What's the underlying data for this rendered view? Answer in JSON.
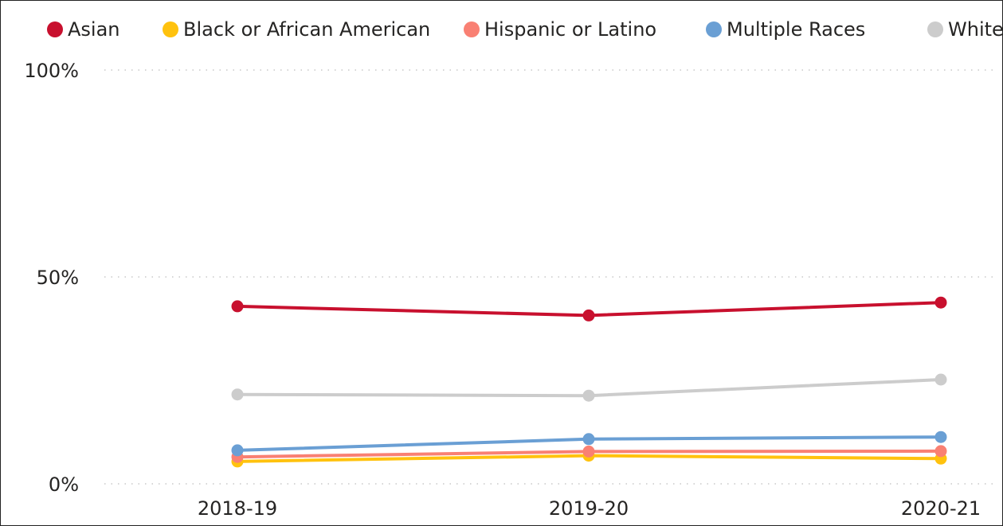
{
  "chart_data": {
    "type": "line",
    "title": "",
    "xlabel": "",
    "ylabel": "",
    "categories": [
      "2018-19",
      "2019-20",
      "2020-21"
    ],
    "ylim": [
      0,
      100
    ],
    "y_ticks": [
      {
        "value": 0,
        "label": "0%"
      },
      {
        "value": 50,
        "label": "50%"
      },
      {
        "value": 100,
        "label": "100%"
      }
    ],
    "grid": "horizontal dotted",
    "legend_position": "top",
    "series": [
      {
        "name": "Asian",
        "color": "#c8102e",
        "values": [
          42.9,
          40.7,
          43.8
        ]
      },
      {
        "name": "Black or African American",
        "color": "#ffc20e",
        "values": [
          5.4,
          6.8,
          6.1
        ]
      },
      {
        "name": "Hispanic or Latino",
        "color": "#f98073",
        "values": [
          6.5,
          7.8,
          7.9
        ]
      },
      {
        "name": "Multiple Races",
        "color": "#6a9fd4",
        "values": [
          8.1,
          10.8,
          11.3
        ]
      },
      {
        "name": "White",
        "color": "#cccccc",
        "values": [
          21.6,
          21.3,
          25.2
        ]
      }
    ]
  }
}
